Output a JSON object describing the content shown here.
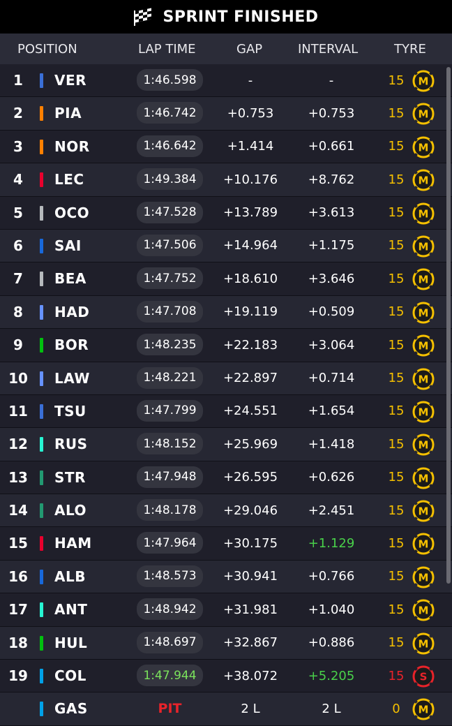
{
  "header": {
    "title": "SPRINT FINISHED",
    "flag_icon": "checkered-flag-icon"
  },
  "columns": {
    "position": "POSITION",
    "lap_time": "LAP TIME",
    "gap": "GAP",
    "interval": "INTERVAL",
    "tyre": "TYRE"
  },
  "rows": [
    {
      "pos": "1",
      "driver": "VER",
      "team_color": "#3a6fd6",
      "lap": "1:46.598",
      "lap_best": false,
      "gap": "-",
      "interval": "-",
      "interval_green": false,
      "laps": "15",
      "tyre": "M"
    },
    {
      "pos": "2",
      "driver": "PIA",
      "team_color": "#ff8000",
      "lap": "1:46.742",
      "lap_best": false,
      "gap": "+0.753",
      "interval": "+0.753",
      "interval_green": false,
      "laps": "15",
      "tyre": "M"
    },
    {
      "pos": "3",
      "driver": "NOR",
      "team_color": "#ff8000",
      "lap": "1:46.642",
      "lap_best": false,
      "gap": "+1.414",
      "interval": "+0.661",
      "interval_green": false,
      "laps": "15",
      "tyre": "M"
    },
    {
      "pos": "4",
      "driver": "LEC",
      "team_color": "#e8002d",
      "lap": "1:49.384",
      "lap_best": false,
      "gap": "+10.176",
      "interval": "+8.762",
      "interval_green": false,
      "laps": "15",
      "tyre": "M"
    },
    {
      "pos": "5",
      "driver": "OCO",
      "team_color": "#b6babd",
      "lap": "1:47.528",
      "lap_best": false,
      "gap": "+13.789",
      "interval": "+3.613",
      "interval_green": false,
      "laps": "15",
      "tyre": "M"
    },
    {
      "pos": "6",
      "driver": "SAI",
      "team_color": "#1868db",
      "lap": "1:47.506",
      "lap_best": false,
      "gap": "+14.964",
      "interval": "+1.175",
      "interval_green": false,
      "laps": "15",
      "tyre": "M"
    },
    {
      "pos": "7",
      "driver": "BEA",
      "team_color": "#b6babd",
      "lap": "1:47.752",
      "lap_best": false,
      "gap": "+18.610",
      "interval": "+3.646",
      "interval_green": false,
      "laps": "15",
      "tyre": "M"
    },
    {
      "pos": "8",
      "driver": "HAD",
      "team_color": "#6692ff",
      "lap": "1:47.708",
      "lap_best": false,
      "gap": "+19.119",
      "interval": "+0.509",
      "interval_green": false,
      "laps": "15",
      "tyre": "M"
    },
    {
      "pos": "9",
      "driver": "BOR",
      "team_color": "#01c00e",
      "lap": "1:48.235",
      "lap_best": false,
      "gap": "+22.183",
      "interval": "+3.064",
      "interval_green": false,
      "laps": "15",
      "tyre": "M"
    },
    {
      "pos": "10",
      "driver": "LAW",
      "team_color": "#6692ff",
      "lap": "1:48.221",
      "lap_best": false,
      "gap": "+22.897",
      "interval": "+0.714",
      "interval_green": false,
      "laps": "15",
      "tyre": "M"
    },
    {
      "pos": "11",
      "driver": "TSU",
      "team_color": "#3a6fd6",
      "lap": "1:47.799",
      "lap_best": false,
      "gap": "+24.551",
      "interval": "+1.654",
      "interval_green": false,
      "laps": "15",
      "tyre": "M"
    },
    {
      "pos": "12",
      "driver": "RUS",
      "team_color": "#27f4d2",
      "lap": "1:48.152",
      "lap_best": false,
      "gap": "+25.969",
      "interval": "+1.418",
      "interval_green": false,
      "laps": "15",
      "tyre": "M"
    },
    {
      "pos": "13",
      "driver": "STR",
      "team_color": "#229971",
      "lap": "1:47.948",
      "lap_best": false,
      "gap": "+26.595",
      "interval": "+0.626",
      "interval_green": false,
      "laps": "15",
      "tyre": "M"
    },
    {
      "pos": "14",
      "driver": "ALO",
      "team_color": "#229971",
      "lap": "1:48.178",
      "lap_best": false,
      "gap": "+29.046",
      "interval": "+2.451",
      "interval_green": false,
      "laps": "15",
      "tyre": "M"
    },
    {
      "pos": "15",
      "driver": "HAM",
      "team_color": "#e8002d",
      "lap": "1:47.964",
      "lap_best": false,
      "gap": "+30.175",
      "interval": "+1.129",
      "interval_green": true,
      "laps": "15",
      "tyre": "M"
    },
    {
      "pos": "16",
      "driver": "ALB",
      "team_color": "#1868db",
      "lap": "1:48.573",
      "lap_best": false,
      "gap": "+30.941",
      "interval": "+0.766",
      "interval_green": false,
      "laps": "15",
      "tyre": "M"
    },
    {
      "pos": "17",
      "driver": "ANT",
      "team_color": "#27f4d2",
      "lap": "1:48.942",
      "lap_best": false,
      "gap": "+31.981",
      "interval": "+1.040",
      "interval_green": false,
      "laps": "15",
      "tyre": "M"
    },
    {
      "pos": "18",
      "driver": "HUL",
      "team_color": "#01c00e",
      "lap": "1:48.697",
      "lap_best": false,
      "gap": "+32.867",
      "interval": "+0.886",
      "interval_green": false,
      "laps": "15",
      "tyre": "M"
    },
    {
      "pos": "19",
      "driver": "COL",
      "team_color": "#00a1e8",
      "lap": "1:47.944",
      "lap_best": true,
      "gap": "+38.072",
      "interval": "+5.205",
      "interval_green": true,
      "laps": "15",
      "tyre": "S"
    },
    {
      "pos": "",
      "driver": "GAS",
      "team_color": "#00a1e8",
      "lap": "PIT",
      "lap_best": false,
      "pit": true,
      "gap": "2 L",
      "interval": "2 L",
      "interval_green": false,
      "laps": "0",
      "tyre": "M"
    }
  ],
  "colors": {
    "medium_tyre": "#f5c000",
    "soft_tyre": "#e8232a",
    "laps_yellow": "#f5c000",
    "pit_red": "#e8232a",
    "fastest_green": "#49d14a"
  }
}
